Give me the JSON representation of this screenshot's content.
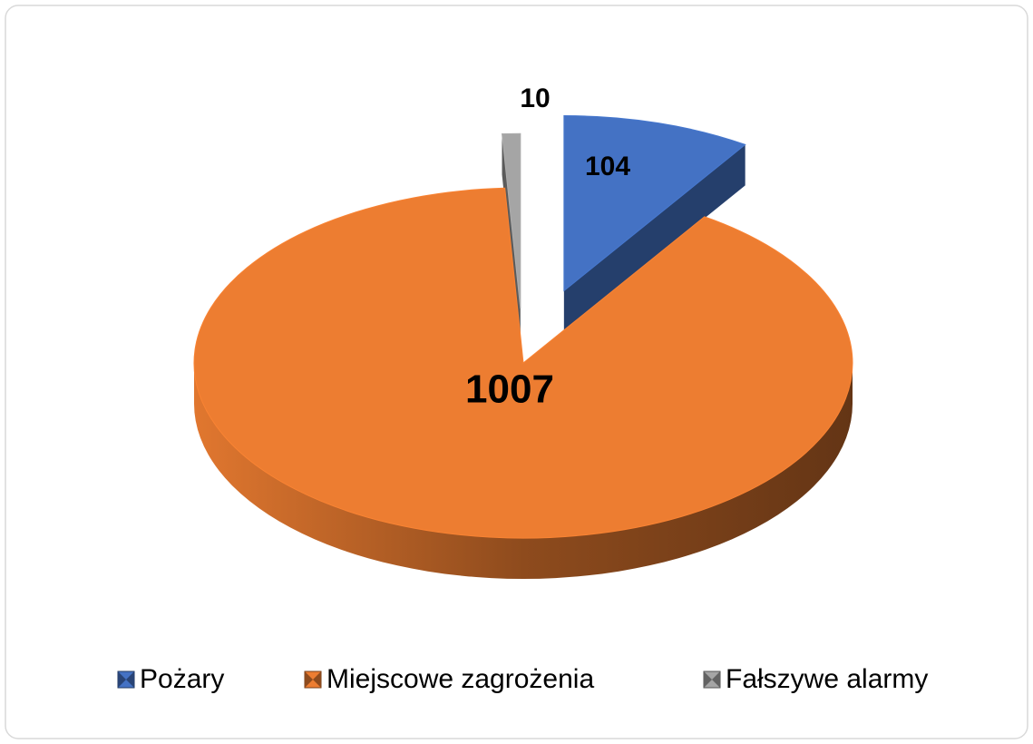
{
  "chart_data": {
    "type": "pie",
    "categories": [
      "Pożary",
      "Miejscowe zagrożenia",
      "Fałszywe alarmy"
    ],
    "values": [
      104,
      1007,
      10
    ],
    "colors": [
      "#4472c4",
      "#ed7d31",
      "#a5a5a5"
    ],
    "legend": "bottom"
  }
}
